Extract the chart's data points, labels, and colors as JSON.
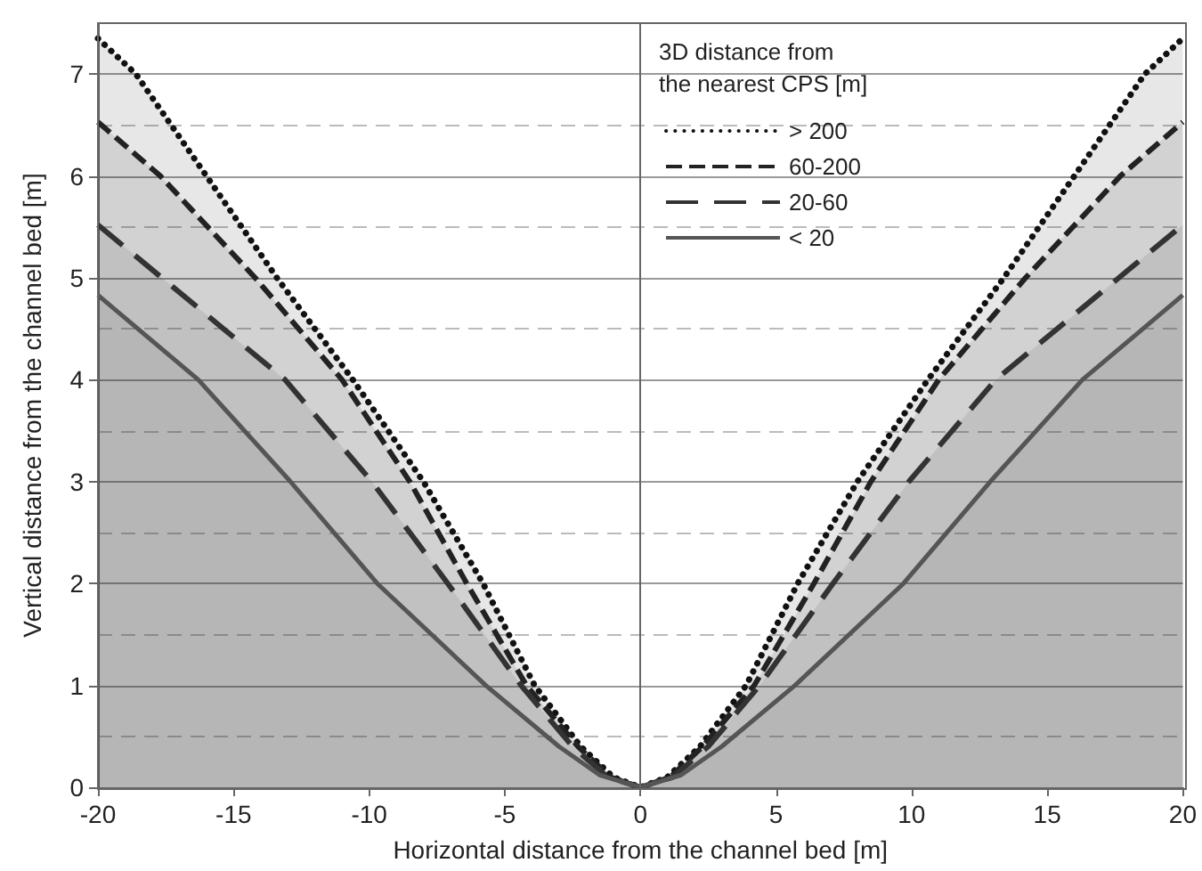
{
  "chart_data": {
    "type": "area",
    "xlabel": "Horizontal distance from the channel bed [m]",
    "ylabel": "Vertical distance from the channel bed [m]",
    "legend_title": "3D distance from\nthe nearest CPS [m]",
    "xlim": [
      -20,
      20
    ],
    "xticks": [
      -20,
      -15,
      -10,
      -5,
      0,
      5,
      10,
      15,
      20
    ],
    "ylim": [
      0,
      7.5
    ],
    "yticks": [
      0,
      1,
      2,
      3,
      4,
      5,
      6,
      7
    ],
    "grid": "y",
    "legend": "top right",
    "marker": "none",
    "ref_lines": [
      {
        "axis": "x",
        "value": 0,
        "color": "#666666"
      }
    ],
    "series": [
      {
        "name": "> 200",
        "color": "#111111",
        "line_style": "dotted",
        "x": [
          -20,
          -18.6,
          -16,
          -13.4,
          -10.6,
          -8,
          -5.8,
          -3.9,
          -2.2,
          -1,
          0,
          1,
          2.2,
          3.9,
          5.8,
          8,
          10.6,
          13.4,
          16,
          18.6,
          20
        ],
        "values": [
          7.35,
          7,
          6,
          5,
          4,
          3,
          2,
          1,
          0.4,
          0.1,
          0,
          0.1,
          0.4,
          1,
          2,
          3,
          4,
          5,
          6,
          7,
          7.35
        ]
      },
      {
        "name": "60-200",
        "color": "#222222",
        "line_style": "dashed",
        "x": [
          -20,
          -17.7,
          -14.2,
          -11,
          -8.5,
          -6.4,
          -4.2,
          -2.3,
          -1.1,
          0,
          1.1,
          2.3,
          4.2,
          6.4,
          8.5,
          11,
          14.2,
          17.7,
          20
        ],
        "values": [
          6.53,
          6,
          5,
          4,
          3,
          2,
          1,
          0.4,
          0.1,
          0,
          0.1,
          0.4,
          1,
          2,
          3,
          4,
          5,
          6,
          6.53
        ]
      },
      {
        "name": "20-60",
        "color": "#333333",
        "line_style": "longdash",
        "x": [
          -20,
          -13.1,
          -9.9,
          -7.1,
          -4.4,
          -2.5,
          -1.2,
          0,
          1.2,
          2.5,
          4.4,
          7.1,
          9.9,
          13.1,
          20
        ],
        "values": [
          5.52,
          4,
          3,
          2,
          1,
          0.4,
          0.1,
          0,
          0.1,
          0.4,
          1,
          2,
          3,
          4,
          5.52
        ]
      },
      {
        "name": "< 20",
        "color": "#555555",
        "line_style": "solid",
        "x": [
          -20,
          -16.3,
          -12.9,
          -9.7,
          -5.7,
          -3,
          -1.5,
          0,
          1.5,
          3,
          5.7,
          9.7,
          12.9,
          16.3,
          20
        ],
        "values": [
          4.83,
          4,
          3,
          2,
          1,
          0.4,
          0.12,
          0,
          0.12,
          0.4,
          1,
          2,
          3,
          4,
          4.83
        ]
      }
    ]
  }
}
